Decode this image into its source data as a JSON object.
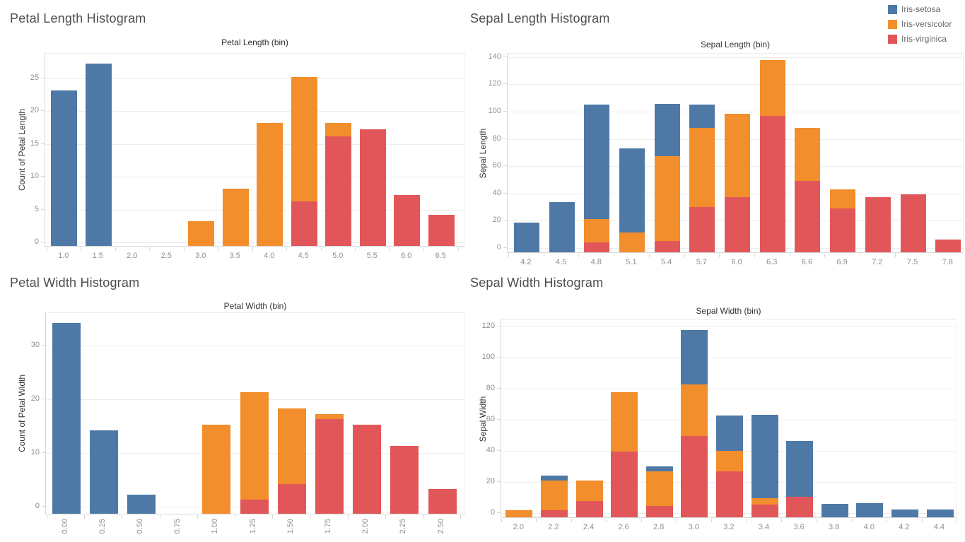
{
  "legend": {
    "position": "top-right",
    "items": [
      {
        "label": "Iris-setosa",
        "color": "#4e79a7"
      },
      {
        "label": "Iris-versicolor",
        "color": "#f28e2b"
      },
      {
        "label": "Iris-virginica",
        "color": "#e15759"
      }
    ]
  },
  "chart_data": [
    {
      "id": "petal-length",
      "type": "bar",
      "stacked": true,
      "title": "Petal Length Histogram",
      "xlabel": "Petal Length (bin)",
      "ylabel": "Count of Petal Length",
      "categories": [
        "1.0",
        "1.5",
        "2.0",
        "2.5",
        "3.0",
        "3.5",
        "4.0",
        "4.5",
        "5.0",
        "5.5",
        "6.0",
        "6.5"
      ],
      "y_ticks": [
        0,
        5,
        10,
        15,
        20,
        25
      ],
      "ylim": [
        0,
        29
      ],
      "grid": true,
      "x_labels_rotated": false,
      "stack_order_bottom_to_top": [
        "Iris-virginica",
        "Iris-versicolor",
        "Iris-setosa"
      ],
      "series": [
        {
          "name": "Iris-setosa",
          "values": [
            23,
            27,
            0,
            0,
            0,
            0,
            0,
            0,
            0,
            0,
            0,
            0
          ]
        },
        {
          "name": "Iris-versicolor",
          "values": [
            0,
            0,
            0,
            0,
            3,
            8,
            18,
            19,
            2,
            0,
            0,
            0
          ]
        },
        {
          "name": "Iris-virginica",
          "values": [
            0,
            0,
            0,
            0,
            0,
            0,
            0,
            6,
            16,
            17,
            7,
            4
          ]
        }
      ]
    },
    {
      "id": "sepal-length",
      "type": "bar",
      "stacked": true,
      "title": "Sepal Length Histogram",
      "xlabel": "Sepal Length (bin)",
      "ylabel": "Sepal Length",
      "categories": [
        "4.2",
        "4.5",
        "4.8",
        "5.1",
        "5.4",
        "5.7",
        "6.0",
        "6.3",
        "6.6",
        "6.9",
        "7.2",
        "7.5",
        "7.8"
      ],
      "y_ticks": [
        0,
        20,
        40,
        60,
        80,
        100,
        120,
        140
      ],
      "ylim": [
        0,
        146
      ],
      "grid": true,
      "x_labels_rotated": false,
      "stack_order_bottom_to_top": [
        "Iris-virginica",
        "Iris-versicolor",
        "Iris-setosa"
      ],
      "series": [
        {
          "name": "Iris-setosa",
          "values": [
            17.5,
            32.5,
            84,
            61.5,
            38,
            17,
            0,
            0,
            0,
            0,
            0,
            0,
            0
          ]
        },
        {
          "name": "Iris-versicolor",
          "values": [
            0,
            0,
            17,
            10.5,
            62.5,
            58,
            61,
            41,
            39,
            14,
            0,
            0,
            0
          ]
        },
        {
          "name": "Iris-virginica",
          "values": [
            0,
            0,
            3,
            0,
            4,
            29,
            36.5,
            96,
            48,
            28,
            36.5,
            38.5,
            5
          ]
        }
      ]
    },
    {
      "id": "petal-width",
      "type": "bar",
      "stacked": true,
      "title": "Petal Width Histogram",
      "xlabel": "Petal Width (bin)",
      "ylabel": "Count of Petal Width",
      "categories": [
        "0.00",
        "0.25",
        "0.50",
        "0.75",
        "1.00",
        "1.25",
        "1.50",
        "1.75",
        "2.00",
        "2.25",
        "2.50"
      ],
      "y_ticks": [
        0,
        10,
        20,
        30
      ],
      "ylim": [
        0,
        37
      ],
      "grid": true,
      "x_labels_rotated": true,
      "stack_order_bottom_to_top": [
        "Iris-virginica",
        "Iris-versicolor",
        "Iris-setosa"
      ],
      "series": [
        {
          "name": "Iris-setosa",
          "values": [
            34,
            14,
            2,
            0,
            0,
            0,
            0,
            0,
            0,
            0,
            0
          ]
        },
        {
          "name": "Iris-versicolor",
          "values": [
            0,
            0,
            0,
            0,
            15,
            20,
            14,
            1,
            0,
            0,
            0
          ]
        },
        {
          "name": "Iris-virginica",
          "values": [
            0,
            0,
            0,
            0,
            0,
            1,
            4,
            16,
            15,
            11,
            3
          ]
        }
      ]
    },
    {
      "id": "sepal-width",
      "type": "bar",
      "stacked": true,
      "title": "Sepal Width Histogram",
      "xlabel": "Sepal Width (bin)",
      "ylabel": "Sepal Width",
      "categories": [
        "2.0",
        "2.2",
        "2.4",
        "2.6",
        "2.8",
        "3.0",
        "3.2",
        "3.4",
        "3.6",
        "3.8",
        "4.0",
        "4.2",
        "4.4"
      ],
      "y_ticks": [
        0,
        20,
        40,
        60,
        80,
        100,
        120
      ],
      "ylim": [
        0,
        128
      ],
      "grid": true,
      "x_labels_rotated": false,
      "stack_order_bottom_to_top": [
        "Iris-virginica",
        "Iris-versicolor",
        "Iris-setosa"
      ],
      "series": [
        {
          "name": "Iris-setosa",
          "values": [
            0,
            3,
            0,
            0,
            3,
            35,
            23,
            54,
            36,
            5,
            5.5,
            1.5,
            1.5
          ]
        },
        {
          "name": "Iris-versicolor",
          "values": [
            1,
            19,
            13,
            38.5,
            22.5,
            33.5,
            13,
            4,
            0,
            0,
            0,
            0,
            0
          ]
        },
        {
          "name": "Iris-virginica",
          "values": [
            0,
            1,
            7,
            38.5,
            3.5,
            48.5,
            26,
            4.5,
            9.5,
            0,
            0,
            0,
            0
          ]
        }
      ]
    }
  ]
}
